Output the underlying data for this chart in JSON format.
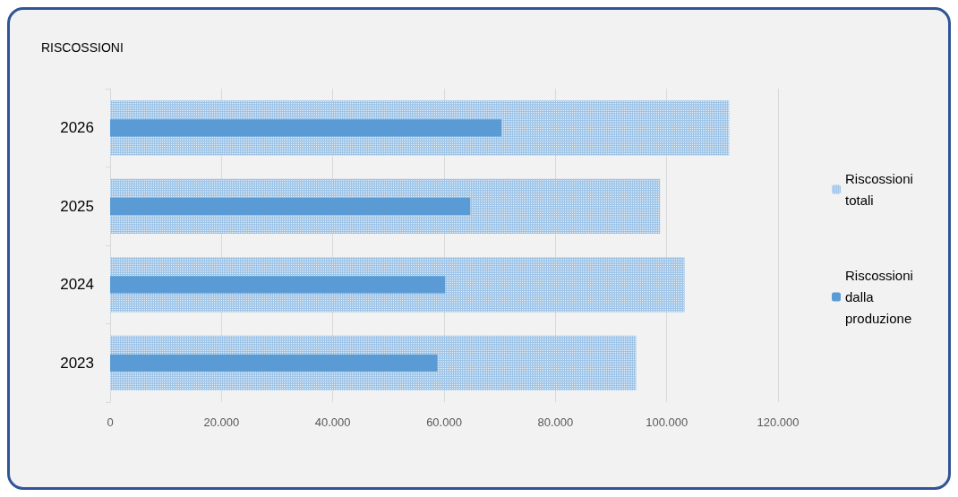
{
  "chart_data": {
    "type": "bar",
    "title": "RISCOSSIONI",
    "orientation": "horizontal",
    "categories": [
      "2026",
      "2025",
      "2024",
      "2023"
    ],
    "series": [
      {
        "name": "Riscossioni totali",
        "color": "#9dc3e6",
        "values": [
          111200,
          98800,
          103200,
          94500
        ]
      },
      {
        "name": "Riscossioni dalla produzione",
        "color": "#5b9bd5",
        "values": [
          70300,
          64700,
          60200,
          58800
        ]
      }
    ],
    "xlim": [
      0,
      120000
    ],
    "xticks": [
      0,
      {
        "value": 20000,
        "label": "20.000"
      },
      {
        "value": 40000,
        "label": "40.000"
      },
      {
        "value": 60000,
        "label": "60.000"
      },
      {
        "value": 80000,
        "label": "80.000"
      },
      {
        "value": 100000,
        "label": "100.000"
      },
      {
        "value": 120000,
        "label": "120.000"
      }
    ],
    "grid": "x",
    "legend": "right"
  }
}
